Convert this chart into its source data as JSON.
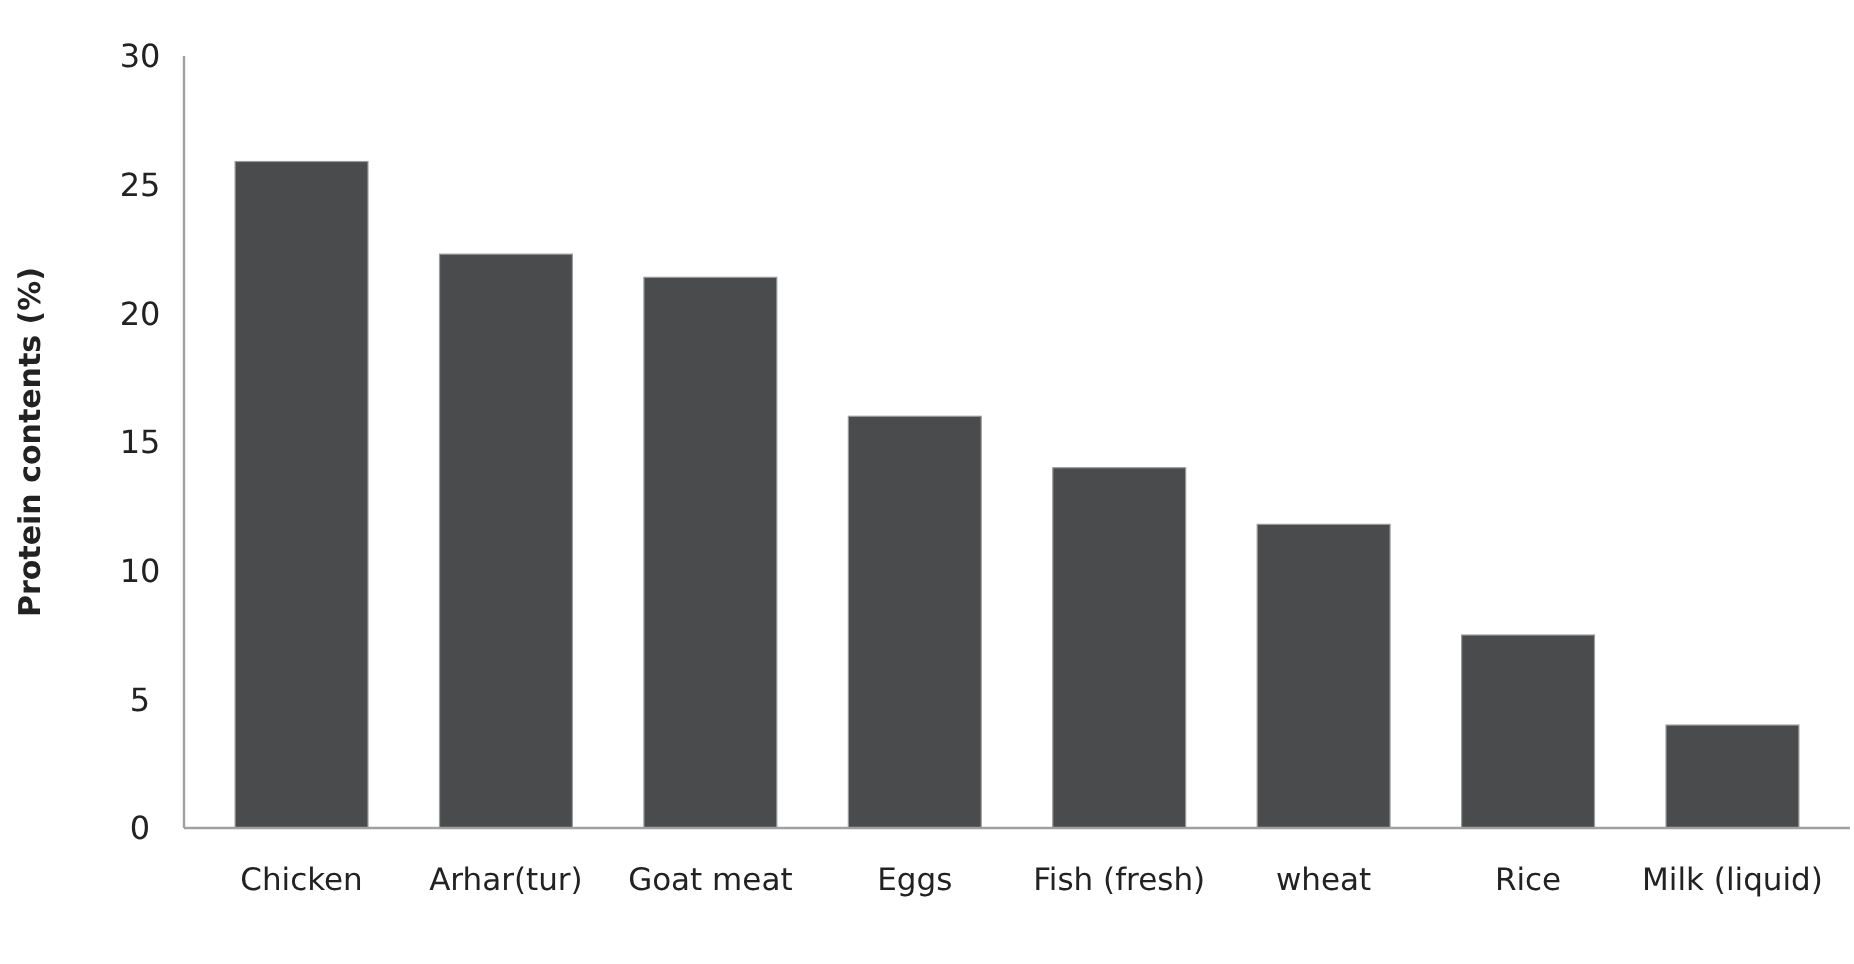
{
  "chart_data": {
    "type": "bar",
    "ylabel": "Protein contents (%)",
    "categories": [
      "Chicken",
      "Arhar(tur)",
      "Goat meat",
      "Eggs",
      "Fish (fresh)",
      "wheat",
      "Rice",
      "Milk (liquid)"
    ],
    "values": [
      25.9,
      22.3,
      21.4,
      16.0,
      14.0,
      11.8,
      7.5,
      4.0
    ],
    "color": "#4a4b4d",
    "ylim": [
      0,
      30
    ],
    "yticks": [
      0,
      5,
      10,
      15,
      20,
      25,
      30
    ],
    "grid": false
  }
}
